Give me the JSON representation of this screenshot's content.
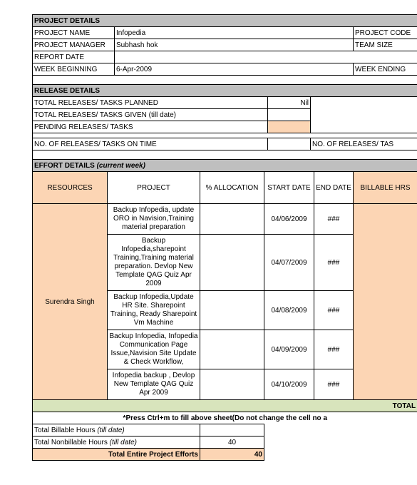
{
  "project_details": {
    "section": "PROJECT DETAILS",
    "name_lbl": "PROJECT NAME",
    "name_val": "Infopedia",
    "code_lbl": "PROJECT CODE",
    "mgr_lbl": "PROJECT MANAGER",
    "mgr_val": "Subhash hok",
    "team_lbl": "TEAM SIZE",
    "report_lbl": "REPORT DATE",
    "week_beg_lbl": "WEEK BEGINNING",
    "week_beg_val": "6-Apr-2009",
    "week_end_lbl": "WEEK ENDING"
  },
  "release_details": {
    "section": "RELEASE DETAILS",
    "planned_lbl": "TOTAL RELEASES/ TASKS PLANNED",
    "planned_val": "Nil",
    "given_lbl": "TOTAL RELEASES/ TASKS GIVEN (till date)",
    "pending_lbl": "PENDING RELEASES/ TASKS",
    "ontime_lbl": "NO. OF RELEASES/ TASKS ON TIME",
    "ontime_rt": "NO. OF RELEASES/ TAS"
  },
  "effort": {
    "section": "EFFORT DETAILS (current week)",
    "cols": {
      "resources": "RESOURCES",
      "project": "PROJECT",
      "alloc": "% ALLOCATION",
      "start": "START DATE",
      "end": "END DATE",
      "bill": "BILLABLE HRS"
    },
    "resource": "Surendra Singh",
    "rows": [
      {
        "project": "Backup Infopedia, update ORO in Navision,Training material preparation",
        "start": "04/06/2009",
        "end": "###"
      },
      {
        "project": "Backup Infopedia,sharepoint Training,Training material preparation. Devlop New Template QAG Quiz Apr 2009",
        "start": "04/07/2009",
        "end": "###"
      },
      {
        "project": "Backup Infopedia,Update HR Site. Sharepoint Training, Ready Sharepoint Vm Machine",
        "start": "04/08/2009",
        "end": "###"
      },
      {
        "project": "Backup Infopedia, Infopedia Communication Page Issue,Navision Site Update & Check Workflow,",
        "start": "04/09/2009",
        "end": "###"
      },
      {
        "project": "Infopedia backup , Devlop New Template QAG Quiz Apr 2009",
        "start": "04/10/2009",
        "end": "###"
      }
    ],
    "total_lbl": "TOTAL"
  },
  "footer": {
    "note": "*Press Ctrl+m to fill above sheet(Do not change the cell no a",
    "bill_lbl": "Total Billable Hours (till date)",
    "nonbill_lbl": "Total Nonbillable Hours (till date)",
    "nonbill_val": "40",
    "total_lbl": "Total Entire Project Efforts",
    "total_val": "40"
  },
  "colors": {
    "section_bg": "#bfbfbf",
    "peach": "#fcd5b4",
    "green": "#d8e4bc"
  }
}
